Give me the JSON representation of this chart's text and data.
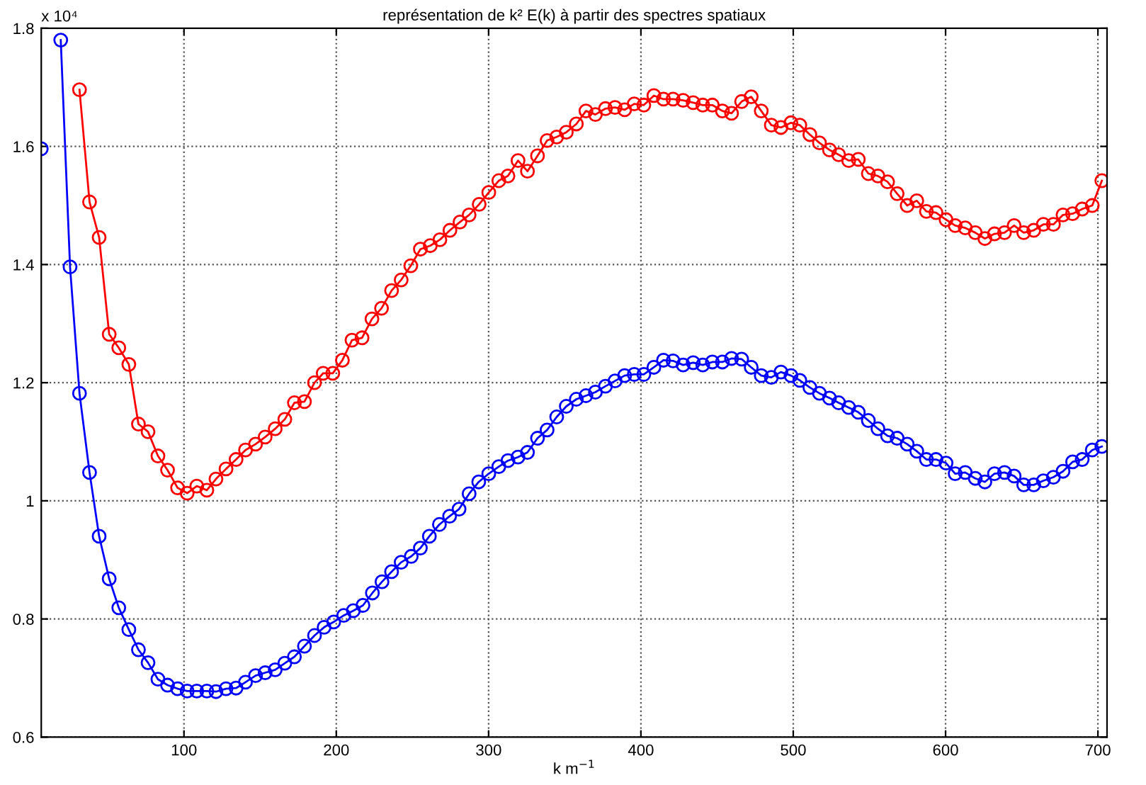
{
  "chart_data": {
    "type": "line",
    "title": "représentation de k² E(k) à partir des spectres spatiaux",
    "xlabel": "k m$^{−1}$",
    "annotations": [
      "x 10⁴"
    ],
    "xlim": [
      6.3,
      706
    ],
    "xticks": [
      100,
      200,
      300,
      400,
      500,
      600,
      700
    ],
    "ylim": [
      0.6,
      1.8
    ],
    "yticks": [
      0.6,
      0.8,
      {
        "value": 1.0,
        "label": "1"
      },
      1.2,
      1.4,
      1.6,
      1.8
    ],
    "grid": true,
    "marker": "circle",
    "line_style": "solid",
    "legend": false,
    "series": [
      {
        "color": "#ff0000",
        "x": [
          31.4,
          38.0,
          44.3,
          50.9,
          57.2,
          63.8,
          70.1,
          76.4,
          82.9,
          89.2,
          95.8,
          102.1,
          108.4,
          115.0,
          121.0,
          127.6,
          134.2,
          140.4,
          147.0,
          153.3,
          159.9,
          166.2,
          172.5,
          179.1,
          185.7,
          191.4,
          197.7,
          204.0,
          210.3,
          216.9,
          223.4,
          229.7,
          236.3,
          242.6,
          248.9,
          255.2,
          261.7,
          268.0,
          274.6,
          281.2,
          287.2,
          293.8,
          300.1,
          306.7,
          312.7,
          319.3,
          325.5,
          332.1,
          338.4,
          344.7,
          351.0,
          357.6,
          363.9,
          370.1,
          376.7,
          383.0,
          389.3,
          395.6,
          401.9,
          408.5,
          414.8,
          421.1,
          427.7,
          434.3,
          440.6,
          446.9,
          453.5,
          459.5,
          466.1,
          472.4,
          479.0,
          485.6,
          491.9,
          498.5,
          504.3,
          510.9,
          517.2,
          523.8,
          529.8,
          536.4,
          542.7,
          549.3,
          555.6,
          561.9,
          568.2,
          574.8,
          581.1,
          587.4,
          593.7,
          600.3,
          606.3,
          612.9,
          619.5,
          625.8,
          632.1,
          638.7,
          645.0,
          651.3,
          657.9,
          664.2,
          670.8,
          677.1,
          683.4,
          689.7,
          696.3,
          702.6
        ],
        "values": [
          1.696,
          1.506,
          1.446,
          1.282,
          1.259,
          1.231,
          1.13,
          1.117,
          1.076,
          1.052,
          1.022,
          1.013,
          1.025,
          1.018,
          1.037,
          1.054,
          1.07,
          1.086,
          1.096,
          1.108,
          1.122,
          1.138,
          1.166,
          1.168,
          1.2,
          1.216,
          1.216,
          1.238,
          1.272,
          1.276,
          1.308,
          1.326,
          1.356,
          1.374,
          1.398,
          1.426,
          1.432,
          1.442,
          1.458,
          1.472,
          1.484,
          1.502,
          1.522,
          1.542,
          1.55,
          1.576,
          1.558,
          1.584,
          1.61,
          1.616,
          1.624,
          1.638,
          1.66,
          1.654,
          1.664,
          1.666,
          1.662,
          1.672,
          1.67,
          1.686,
          1.68,
          1.68,
          1.678,
          1.674,
          1.67,
          1.67,
          1.66,
          1.656,
          1.676,
          1.684,
          1.66,
          1.636,
          1.632,
          1.64,
          1.636,
          1.62,
          1.606,
          1.594,
          1.586,
          1.576,
          1.578,
          1.554,
          1.55,
          1.54,
          1.52,
          1.5,
          1.508,
          1.49,
          1.488,
          1.476,
          1.466,
          1.462,
          1.454,
          1.444,
          1.452,
          1.454,
          1.466,
          1.454,
          1.458,
          1.468,
          1.468,
          1.484,
          1.486,
          1.494,
          1.5,
          1.542
        ]
      },
      {
        "color": "#0000ff",
        "x": [
          6.3,
          12.6,
          19.1,
          25.2,
          31.4,
          38.0,
          44.3,
          50.9,
          57.2,
          63.8,
          70.1,
          76.4,
          82.9,
          89.2,
          95.8,
          102.1,
          108.4,
          115.0,
          121.0,
          127.6,
          134.2,
          140.4,
          147.0,
          153.3,
          159.9,
          166.2,
          172.5,
          179.1,
          185.7,
          192.0,
          198.3,
          204.9,
          211.2,
          217.5,
          223.7,
          230.0,
          236.3,
          242.6,
          249.2,
          255.2,
          261.1,
          267.7,
          274.4,
          280.6,
          287.2,
          293.5,
          300.1,
          306.7,
          312.7,
          319.3,
          325.5,
          332.1,
          338.4,
          344.7,
          351.0,
          357.6,
          363.9,
          370.1,
          376.7,
          383.0,
          389.3,
          395.6,
          401.9,
          408.5,
          414.8,
          421.1,
          427.7,
          434.3,
          440.6,
          446.9,
          453.5,
          459.5,
          466.1,
          472.4,
          479.0,
          485.6,
          491.9,
          498.5,
          504.3,
          510.9,
          517.2,
          523.8,
          529.8,
          536.4,
          542.7,
          549.3,
          555.6,
          561.9,
          568.2,
          574.8,
          581.1,
          587.4,
          593.7,
          600.3,
          606.3,
          612.9,
          619.5,
          625.8,
          632.1,
          638.7,
          645.0,
          651.3,
          657.9,
          664.2,
          670.8,
          677.1,
          683.4,
          689.7,
          696.3,
          702.6
        ],
        "values": [
          1.596,
          null,
          1.78,
          1.396,
          1.182,
          1.048,
          0.94,
          0.868,
          0.819,
          0.782,
          0.748,
          0.726,
          0.698,
          0.688,
          0.682,
          0.678,
          0.678,
          0.678,
          0.677,
          0.682,
          0.683,
          0.693,
          0.704,
          0.709,
          0.714,
          0.725,
          0.736,
          0.754,
          0.772,
          0.786,
          0.795,
          0.806,
          0.814,
          0.823,
          0.844,
          0.863,
          0.88,
          0.896,
          0.906,
          0.92,
          0.94,
          0.96,
          0.974,
          0.986,
          1.012,
          1.032,
          1.046,
          1.058,
          1.068,
          1.074,
          1.082,
          1.106,
          1.12,
          1.142,
          1.16,
          1.172,
          1.178,
          1.184,
          1.194,
          1.203,
          1.212,
          1.214,
          1.214,
          1.226,
          1.238,
          1.237,
          1.23,
          1.234,
          1.23,
          1.235,
          1.235,
          1.241,
          1.24,
          1.226,
          1.212,
          1.209,
          1.218,
          1.212,
          1.204,
          1.192,
          1.182,
          1.174,
          1.166,
          1.158,
          1.15,
          1.136,
          1.122,
          1.11,
          1.106,
          1.096,
          1.084,
          1.07,
          1.07,
          1.064,
          1.046,
          1.048,
          1.038,
          1.032,
          1.046,
          1.048,
          1.042,
          1.027,
          1.027,
          1.034,
          1.04,
          1.05,
          1.066,
          1.07,
          1.086,
          1.092
        ]
      }
    ]
  }
}
